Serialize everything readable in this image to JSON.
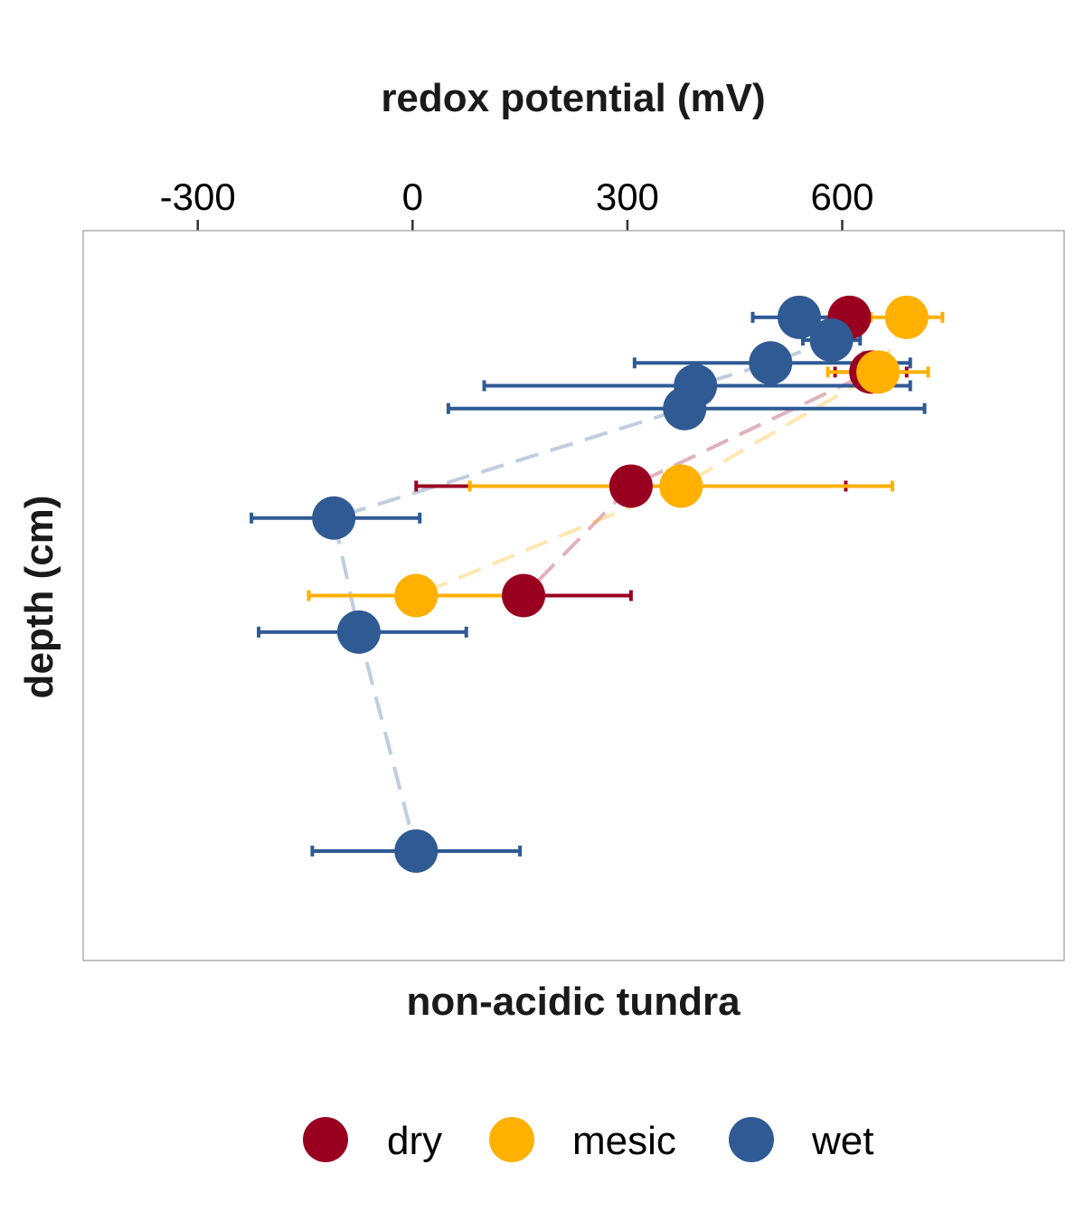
{
  "chart_data": {
    "type": "scatter",
    "title": "",
    "xlabel": "redox potential (mV)",
    "ylabel": "depth (cm)",
    "facet_label": "non-acidic tundra",
    "xlim": [
      -460,
      910
    ],
    "x_ticks": [
      -300,
      0,
      300,
      600
    ],
    "x_tick_labels": [
      "-300",
      "0",
      "300",
      "600"
    ],
    "y_ticks_shown": false,
    "ylim": [
      0,
      16
    ],
    "grid": false,
    "legend_position": "bottom",
    "series": [
      {
        "name": "dry",
        "color": "#990020",
        "points": [
          {
            "x": 610,
            "depth": 1.9,
            "xmin": 545,
            "xmax": 605
          },
          {
            "x": 640,
            "depth": 3.1,
            "xmin": 590,
            "xmax": 690
          },
          {
            "x": 305,
            "depth": 5.6,
            "xmin": 5,
            "xmax": 605
          },
          {
            "x": 155,
            "depth": 8.0,
            "xmin": 5,
            "xmax": 305
          }
        ]
      },
      {
        "name": "mesic",
        "color": "#FFB000",
        "points": [
          {
            "x": 690,
            "depth": 1.9,
            "xmin": 640,
            "xmax": 740
          },
          {
            "x": 650,
            "depth": 3.1,
            "xmin": 580,
            "xmax": 720
          },
          {
            "x": 375,
            "depth": 5.6,
            "xmin": 80,
            "xmax": 670
          },
          {
            "x": 5,
            "depth": 8.0,
            "xmin": -145,
            "xmax": 160
          }
        ]
      },
      {
        "name": "wet",
        "color": "#2F5A94",
        "points": [
          {
            "x": 540,
            "depth": 1.9,
            "xmin": 475,
            "xmax": 600
          },
          {
            "x": 585,
            "depth": 2.4,
            "xmin": 545,
            "xmax": 625
          },
          {
            "x": 500,
            "depth": 2.9,
            "xmin": 310,
            "xmax": 695
          },
          {
            "x": 395,
            "depth": 3.4,
            "xmin": 100,
            "xmax": 695
          },
          {
            "x": 380,
            "depth": 3.9,
            "xmin": 50,
            "xmax": 715
          },
          {
            "x": -110,
            "depth": 6.3,
            "xmin": -225,
            "xmax": 10
          },
          {
            "x": -75,
            "depth": 8.8,
            "xmin": -215,
            "xmax": 75
          },
          {
            "x": 5,
            "depth": 13.6,
            "xmin": -140,
            "xmax": 150
          }
        ]
      }
    ]
  }
}
